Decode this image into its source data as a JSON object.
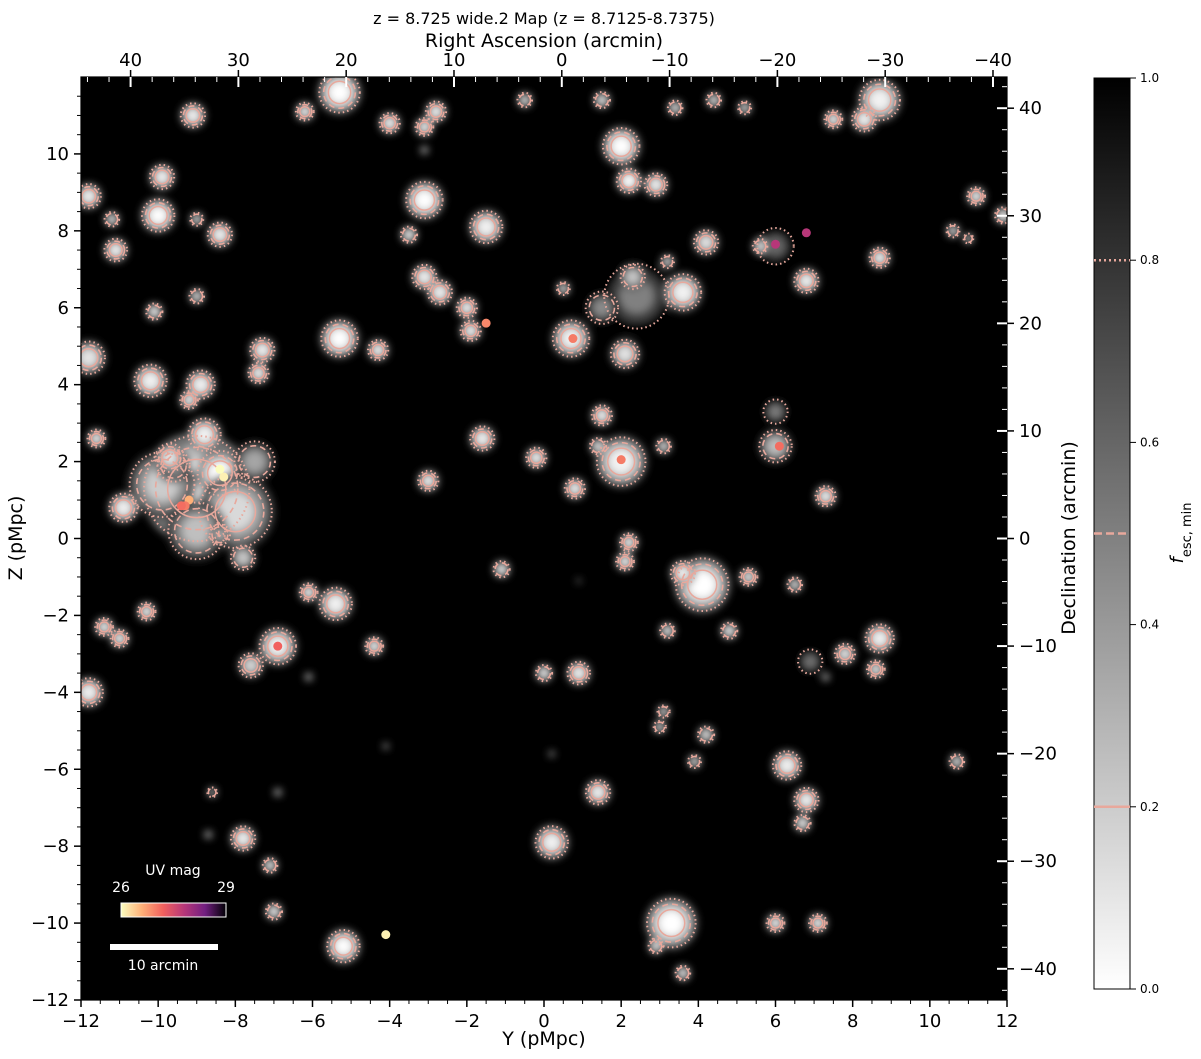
{
  "chart_data": {
    "type": "heatmap",
    "title": "z = 8.725 wide.2 Map (z = 8.7125-8.7375)",
    "xlabel": "Y (pMpc)",
    "ylabel": "Z (pMpc)",
    "x2label": "Right Ascension (arcmin)",
    "y2label": "Declination (arcmin)",
    "xlim": [
      -12,
      12
    ],
    "ylim": [
      -12,
      12
    ],
    "x2lim": [
      44.6,
      -41.3
    ],
    "y2lim": [
      -42.9,
      42.9
    ],
    "xticks": [
      -12,
      -10,
      -8,
      -6,
      -4,
      -2,
      0,
      2,
      4,
      6,
      8,
      10,
      12
    ],
    "yticks": [
      -12,
      -10,
      -8,
      -6,
      -4,
      -2,
      0,
      2,
      4,
      6,
      8,
      10
    ],
    "x2ticks": [
      40,
      30,
      20,
      10,
      0,
      -10,
      -20,
      -30,
      -40
    ],
    "y2ticks": [
      -40,
      -30,
      -20,
      -10,
      0,
      10,
      20,
      30,
      40
    ],
    "xtick_labels": [
      "−12",
      "−10",
      "−8",
      "−6",
      "−4",
      "−2",
      "0",
      "2",
      "4",
      "6",
      "8",
      "10",
      "12"
    ],
    "ytick_labels": [
      "−12",
      "−10",
      "−8",
      "−6",
      "−4",
      "−2",
      "0",
      "2",
      "4",
      "6",
      "8",
      "10"
    ],
    "x2tick_labels": [
      "40",
      "30",
      "20",
      "10",
      "0",
      "−10",
      "−20",
      "−30",
      "−40"
    ],
    "y2tick_labels": [
      "−40",
      "−30",
      "−20",
      "−10",
      "0",
      "10",
      "20",
      "30",
      "40"
    ],
    "colorbar": {
      "label_main": "f",
      "label_sub": "esc, min",
      "range": [
        0,
        1
      ],
      "ticks": [
        0.0,
        0.2,
        0.4,
        0.6,
        0.8,
        1.0
      ],
      "tick_labels": [
        "0.0",
        "0.2",
        "0.4",
        "0.6",
        "0.8",
        "1.0"
      ],
      "contour_levels": [
        {
          "value": 0.2,
          "style": "solid"
        },
        {
          "value": 0.5,
          "style": "dashed"
        },
        {
          "value": 0.8,
          "style": "dotted"
        }
      ],
      "contour_color": "#e8a89c"
    },
    "uv_colorbar": {
      "title": "UV mag",
      "min_label": "26",
      "max_label": "29",
      "range": [
        26,
        29
      ]
    },
    "scalebar_label": "10 arcmin",
    "scalebar_arcmin": 10,
    "ionized_regions": [
      {
        "x": -9.0,
        "y": 1.3,
        "r": 1.3,
        "f": 0.0
      },
      {
        "x": -8.4,
        "y": 1.7,
        "r": 0.55,
        "f": 0.0
      },
      {
        "x": -8.0,
        "y": 0.7,
        "r": 0.9,
        "f": 0.15
      },
      {
        "x": -9.9,
        "y": 1.4,
        "r": 0.8,
        "f": 0.2
      },
      {
        "x": -9.0,
        "y": 0.2,
        "r": 0.7,
        "f": 0.25
      },
      {
        "x": -8.8,
        "y": 2.7,
        "r": 0.4,
        "f": 0.05
      },
      {
        "x": -7.8,
        "y": -0.5,
        "r": 0.3,
        "f": 0.2
      },
      {
        "x": -8.4,
        "y": 0.1,
        "r": 0.25,
        "f": 0.3
      },
      {
        "x": -7.5,
        "y": 2.0,
        "r": 0.5,
        "f": 0.35
      },
      {
        "x": -9.6,
        "y": 1.9,
        "r": 0.4,
        "f": 0.3
      },
      {
        "x": 4.1,
        "y": -1.2,
        "r": 0.65,
        "f": 0.0
      },
      {
        "x": 3.6,
        "y": -0.9,
        "r": 0.3,
        "f": 0.05
      },
      {
        "x": 3.3,
        "y": -10.0,
        "r": 0.6,
        "f": 0.0
      },
      {
        "x": 2.0,
        "y": 2.0,
        "r": 0.6,
        "f": 0.05
      },
      {
        "x": 2.0,
        "y": 10.2,
        "r": 0.45,
        "f": 0.0
      },
      {
        "x": 2.4,
        "y": 6.3,
        "r": 0.8,
        "f": 0.5
      },
      {
        "x": 2.1,
        "y": 4.8,
        "r": 0.35,
        "f": 0.1
      },
      {
        "x": 1.5,
        "y": 6.0,
        "r": 0.4,
        "f": 0.45
      },
      {
        "x": 2.3,
        "y": 6.8,
        "r": 0.3,
        "f": 0.2
      },
      {
        "x": -5.3,
        "y": 11.6,
        "r": 0.5,
        "f": 0.0
      },
      {
        "x": 8.7,
        "y": 11.4,
        "r": 0.5,
        "f": 0.05
      },
      {
        "x": -3.1,
        "y": 8.8,
        "r": 0.45,
        "f": 0.0
      },
      {
        "x": -1.5,
        "y": 8.1,
        "r": 0.4,
        "f": 0.05
      },
      {
        "x": -10.0,
        "y": 8.4,
        "r": 0.4,
        "f": 0.0
      },
      {
        "x": -9.9,
        "y": 9.4,
        "r": 0.3,
        "f": 0.05
      },
      {
        "x": -5.3,
        "y": 5.2,
        "r": 0.45,
        "f": 0.0
      },
      {
        "x": -10.2,
        "y": 4.1,
        "r": 0.4,
        "f": 0.05
      },
      {
        "x": -11.8,
        "y": 4.7,
        "r": 0.4,
        "f": 0.1
      },
      {
        "x": -9.7,
        "y": 2.1,
        "r": 0.35,
        "f": 0.1
      },
      {
        "x": -8.9,
        "y": 4.0,
        "r": 0.35,
        "f": 0.05
      },
      {
        "x": -7.3,
        "y": 4.9,
        "r": 0.3,
        "f": 0.05
      },
      {
        "x": -7.4,
        "y": 4.3,
        "r": 0.25,
        "f": 0.05
      },
      {
        "x": 3.6,
        "y": 6.4,
        "r": 0.45,
        "f": 0.05
      },
      {
        "x": 0.7,
        "y": 5.2,
        "r": 0.45,
        "f": 0.05
      },
      {
        "x": 2.2,
        "y": 9.3,
        "r": 0.3,
        "f": 0.0
      },
      {
        "x": 2.9,
        "y": 9.2,
        "r": 0.28,
        "f": 0.05
      },
      {
        "x": -5.2,
        "y": -10.6,
        "r": 0.4,
        "f": 0.0
      },
      {
        "x": 0.2,
        "y": -7.9,
        "r": 0.4,
        "f": 0.05
      },
      {
        "x": -6.9,
        "y": -2.8,
        "r": 0.45,
        "f": 0.05
      },
      {
        "x": -5.4,
        "y": -1.7,
        "r": 0.4,
        "f": 0.05
      },
      {
        "x": 8.7,
        "y": -2.6,
        "r": 0.35,
        "f": 0.05
      },
      {
        "x": 6.3,
        "y": -5.9,
        "r": 0.35,
        "f": 0.05
      },
      {
        "x": 6.8,
        "y": -6.8,
        "r": 0.3,
        "f": 0.05
      },
      {
        "x": 1.4,
        "y": -6.6,
        "r": 0.3,
        "f": 0.05
      },
      {
        "x": -11.8,
        "y": -4.0,
        "r": 0.35,
        "f": 0.05
      },
      {
        "x": 6.0,
        "y": 2.4,
        "r": 0.4,
        "f": 0.25
      },
      {
        "x": 6.0,
        "y": 3.3,
        "r": 0.3,
        "f": 0.5
      },
      {
        "x": 6.0,
        "y": 7.6,
        "r": 0.45,
        "f": 0.6
      },
      {
        "x": 6.8,
        "y": 6.7,
        "r": 0.3,
        "f": 0.05
      },
      {
        "x": 8.3,
        "y": 10.9,
        "r": 0.3,
        "f": 0.05
      },
      {
        "x": 8.7,
        "y": 7.3,
        "r": 0.25,
        "f": 0.05
      },
      {
        "x": 4.2,
        "y": 7.7,
        "r": 0.3,
        "f": 0.1
      },
      {
        "x": 7.3,
        "y": 1.1,
        "r": 0.25,
        "f": 0.05
      },
      {
        "x": -1.6,
        "y": 2.6,
        "r": 0.3,
        "f": 0.05
      },
      {
        "x": 1.5,
        "y": 3.2,
        "r": 0.25,
        "f": 0.05
      },
      {
        "x": -0.2,
        "y": 2.1,
        "r": 0.25,
        "f": 0.05
      },
      {
        "x": 0.8,
        "y": 1.3,
        "r": 0.25,
        "f": 0.05
      },
      {
        "x": -3.0,
        "y": 1.5,
        "r": 0.25,
        "f": 0.05
      },
      {
        "x": -4.3,
        "y": 4.9,
        "r": 0.25,
        "f": 0.05
      },
      {
        "x": -3.1,
        "y": 6.8,
        "r": 0.3,
        "f": 0.05
      },
      {
        "x": -2.7,
        "y": 6.4,
        "r": 0.3,
        "f": 0.05
      },
      {
        "x": -2.0,
        "y": 6.0,
        "r": 0.25,
        "f": 0.05
      },
      {
        "x": -1.9,
        "y": 5.4,
        "r": 0.25,
        "f": 0.05
      },
      {
        "x": -4.0,
        "y": 10.8,
        "r": 0.25,
        "f": 0.05
      },
      {
        "x": -2.8,
        "y": 11.1,
        "r": 0.25,
        "f": 0.05
      },
      {
        "x": -3.1,
        "y": 10.7,
        "r": 0.22,
        "f": 0.05
      },
      {
        "x": -9.1,
        "y": 11.0,
        "r": 0.3,
        "f": 0.05
      },
      {
        "x": -8.4,
        "y": 7.9,
        "r": 0.3,
        "f": 0.05
      },
      {
        "x": -11.1,
        "y": 7.5,
        "r": 0.28,
        "f": 0.05
      },
      {
        "x": -11.8,
        "y": 8.9,
        "r": 0.3,
        "f": 0.05
      },
      {
        "x": -11.6,
        "y": 2.6,
        "r": 0.22,
        "f": 0.05
      },
      {
        "x": -10.9,
        "y": 0.8,
        "r": 0.35,
        "f": 0.05
      },
      {
        "x": -9.2,
        "y": 3.6,
        "r": 0.22,
        "f": 0.05
      },
      {
        "x": -10.1,
        "y": 5.9,
        "r": 0.2,
        "f": 0.05
      },
      {
        "x": -6.2,
        "y": 11.1,
        "r": 0.22,
        "f": 0.05
      },
      {
        "x": -10.3,
        "y": -1.9,
        "r": 0.22,
        "f": 0.05
      },
      {
        "x": -11.0,
        "y": -2.6,
        "r": 0.22,
        "f": 0.05
      },
      {
        "x": -11.4,
        "y": -2.3,
        "r": 0.22,
        "f": 0.05
      },
      {
        "x": -7.6,
        "y": -3.3,
        "r": 0.3,
        "f": 0.15
      },
      {
        "x": -6.1,
        "y": -1.4,
        "r": 0.22,
        "f": 0.05
      },
      {
        "x": -4.4,
        "y": -2.8,
        "r": 0.22,
        "f": 0.05
      },
      {
        "x": -7.8,
        "y": -7.8,
        "r": 0.3,
        "f": 0.05
      },
      {
        "x": -7.1,
        "y": -8.5,
        "r": 0.18,
        "f": 0.05
      },
      {
        "x": -7.0,
        "y": -9.7,
        "r": 0.2,
        "f": 0.05
      },
      {
        "x": 0.9,
        "y": -3.5,
        "r": 0.28,
        "f": 0.05
      },
      {
        "x": 0.0,
        "y": -3.5,
        "r": 0.2,
        "f": 0.05
      },
      {
        "x": -1.1,
        "y": -0.8,
        "r": 0.2,
        "f": 0.05
      },
      {
        "x": 2.2,
        "y": -0.1,
        "r": 0.22,
        "f": 0.05
      },
      {
        "x": 2.1,
        "y": -0.6,
        "r": 0.22,
        "f": 0.05
      },
      {
        "x": 3.2,
        "y": -2.4,
        "r": 0.18,
        "f": 0.05
      },
      {
        "x": 4.8,
        "y": -2.4,
        "r": 0.2,
        "f": 0.05
      },
      {
        "x": 5.3,
        "y": -1.0,
        "r": 0.22,
        "f": 0.1
      },
      {
        "x": 6.5,
        "y": -1.2,
        "r": 0.18,
        "f": 0.1
      },
      {
        "x": 6.9,
        "y": -3.2,
        "r": 0.3,
        "f": 0.55
      },
      {
        "x": 7.8,
        "y": -3.0,
        "r": 0.25,
        "f": 0.1
      },
      {
        "x": 8.6,
        "y": -3.4,
        "r": 0.22,
        "f": 0.1
      },
      {
        "x": 3.0,
        "y": -4.9,
        "r": 0.15,
        "f": 0.1
      },
      {
        "x": 3.1,
        "y": -4.5,
        "r": 0.15,
        "f": 0.1
      },
      {
        "x": 4.2,
        "y": -5.1,
        "r": 0.2,
        "f": 0.1
      },
      {
        "x": 3.9,
        "y": -5.8,
        "r": 0.16,
        "f": 0.1
      },
      {
        "x": 6.7,
        "y": -7.4,
        "r": 0.2,
        "f": 0.05
      },
      {
        "x": 10.7,
        "y": -5.8,
        "r": 0.18,
        "f": 0.1
      },
      {
        "x": 6.0,
        "y": -10.0,
        "r": 0.22,
        "f": 0.05
      },
      {
        "x": 7.1,
        "y": -10.0,
        "r": 0.22,
        "f": 0.05
      },
      {
        "x": 3.6,
        "y": -11.3,
        "r": 0.18,
        "f": 0.05
      },
      {
        "x": 2.9,
        "y": -10.6,
        "r": 0.18,
        "f": 0.05
      },
      {
        "x": -0.5,
        "y": 11.4,
        "r": 0.18,
        "f": 0.1
      },
      {
        "x": 1.5,
        "y": 11.4,
        "r": 0.2,
        "f": 0.1
      },
      {
        "x": 3.4,
        "y": 11.2,
        "r": 0.18,
        "f": 0.1
      },
      {
        "x": 4.4,
        "y": 11.4,
        "r": 0.18,
        "f": 0.1
      },
      {
        "x": 5.2,
        "y": 11.2,
        "r": 0.16,
        "f": 0.1
      },
      {
        "x": 7.5,
        "y": 10.9,
        "r": 0.22,
        "f": 0.05
      },
      {
        "x": 11.2,
        "y": 8.9,
        "r": 0.22,
        "f": 0.05
      },
      {
        "x": 10.6,
        "y": 8.0,
        "r": 0.16,
        "f": 0.1
      },
      {
        "x": 11.0,
        "y": 7.8,
        "r": 0.12,
        "f": 0.1
      },
      {
        "x": 11.9,
        "y": 8.4,
        "r": 0.2,
        "f": 0.05
      },
      {
        "x": 5.6,
        "y": 7.6,
        "r": 0.18,
        "f": 0.05
      },
      {
        "x": 3.2,
        "y": 7.2,
        "r": 0.16,
        "f": 0.1
      },
      {
        "x": 0.5,
        "y": 6.5,
        "r": 0.16,
        "f": 0.1
      },
      {
        "x": 1.4,
        "y": 2.4,
        "r": 0.2,
        "f": 0.1
      },
      {
        "x": 3.1,
        "y": 2.4,
        "r": 0.18,
        "f": 0.1
      },
      {
        "x": -3.5,
        "y": 7.9,
        "r": 0.2,
        "f": 0.05
      },
      {
        "x": -9.0,
        "y": 8.3,
        "r": 0.16,
        "f": 0.1
      },
      {
        "x": -9.0,
        "y": 6.3,
        "r": 0.18,
        "f": 0.1
      },
      {
        "x": -11.2,
        "y": 8.3,
        "r": 0.18,
        "f": 0.1
      },
      {
        "x": -3.1,
        "y": 10.1,
        "r": 0.1,
        "f": 0.2
      },
      {
        "x": -8.6,
        "y": -6.6,
        "r": 0.12,
        "f": 0.2
      },
      {
        "x": -8.7,
        "y": -7.7,
        "r": 0.1,
        "f": 0.2
      },
      {
        "x": -6.9,
        "y": -6.6,
        "r": 0.1,
        "f": 0.2
      },
      {
        "x": -6.1,
        "y": -3.6,
        "r": 0.1,
        "f": 0.2
      },
      {
        "x": -4.1,
        "y": -5.4,
        "r": 0.08,
        "f": 0.3
      },
      {
        "x": 0.2,
        "y": -5.6,
        "r": 0.08,
        "f": 0.3
      },
      {
        "x": 0.9,
        "y": -1.1,
        "r": 0.06,
        "f": 0.35
      },
      {
        "x": 7.3,
        "y": -3.6,
        "r": 0.1,
        "f": 0.2
      }
    ],
    "sources": [
      {
        "x": -8.3,
        "y": 1.6,
        "mag": 26.1
      },
      {
        "x": -8.4,
        "y": 1.8,
        "mag": 26.0
      },
      {
        "x": -9.2,
        "y": 1.0,
        "mag": 26.6
      },
      {
        "x": -9.3,
        "y": 0.85,
        "mag": 27.0
      },
      {
        "x": -9.4,
        "y": 0.85,
        "mag": 27.1
      },
      {
        "x": -6.9,
        "y": -2.8,
        "mag": 27.2
      },
      {
        "x": 2.0,
        "y": 2.05,
        "mag": 27.0
      },
      {
        "x": 0.75,
        "y": 5.2,
        "mag": 27.0
      },
      {
        "x": -1.5,
        "y": 5.6,
        "mag": 26.9
      },
      {
        "x": 6.1,
        "y": 2.4,
        "mag": 27.1
      },
      {
        "x": 6.0,
        "y": 7.65,
        "mag": 27.8
      },
      {
        "x": 6.8,
        "y": 7.95,
        "mag": 27.8
      },
      {
        "x": -4.1,
        "y": -10.3,
        "mag": 26.1
      }
    ]
  }
}
